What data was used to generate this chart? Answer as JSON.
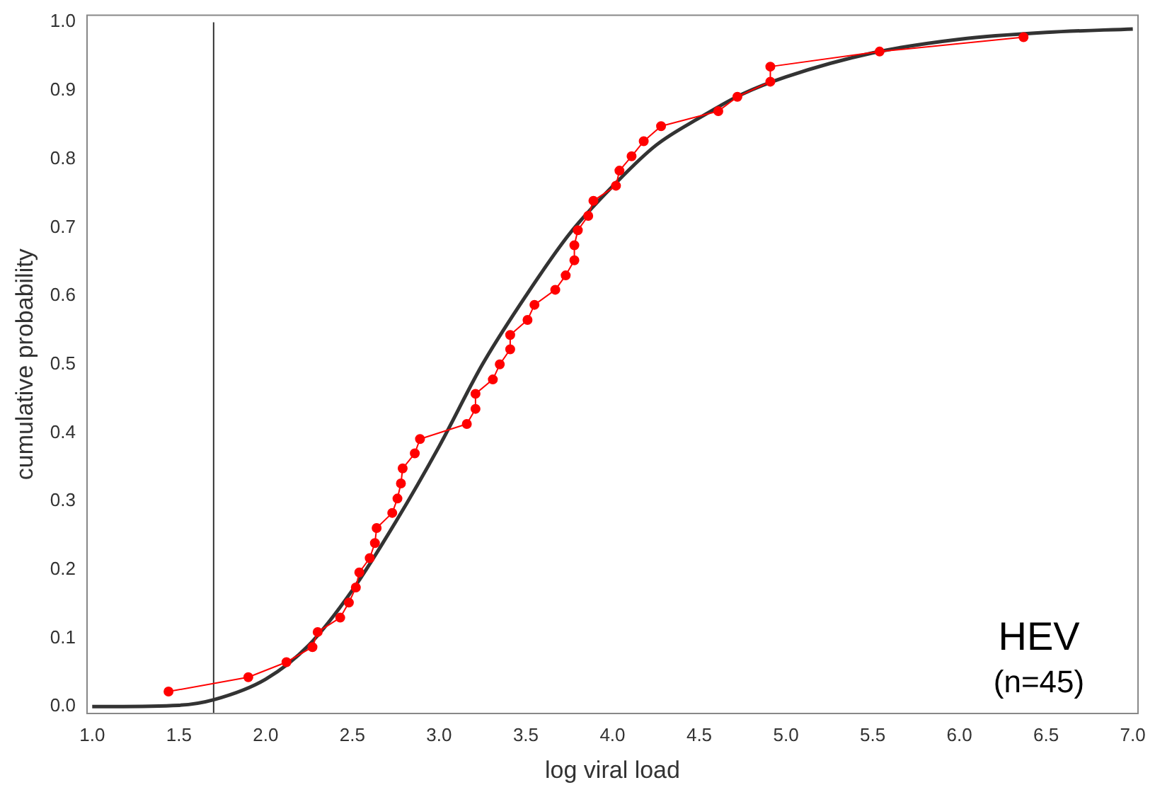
{
  "chart_data": {
    "type": "line",
    "xlabel": "log viral load",
    "ylabel": "cumulative probability",
    "xlim": [
      0.97,
      7.03
    ],
    "ylim": [
      -0.01,
      1.01
    ],
    "xticks": [
      {
        "value": 1,
        "label": "1.0"
      },
      1.5,
      {
        "value": 2,
        "label": "2.0"
      },
      2.5,
      {
        "value": 3,
        "label": "3.0"
      },
      3.5,
      {
        "value": 4,
        "label": "4.0"
      },
      4.5,
      {
        "value": 5,
        "label": "5.0"
      },
      5.5,
      {
        "value": 6,
        "label": "6.0"
      },
      6.5,
      {
        "value": 7,
        "label": "7.0"
      }
    ],
    "yticks": [
      {
        "value": 0,
        "label": "0.0"
      },
      0.1,
      0.2,
      0.3,
      0.4,
      0.5,
      0.6,
      0.7,
      0.8,
      0.9,
      {
        "value": 1,
        "label": "1.0"
      }
    ],
    "grid": false,
    "legend": false,
    "series": [
      {
        "color": "#ff0000",
        "marker": "circle",
        "x": [
          1.44,
          1.9,
          2.12,
          2.27,
          2.3,
          2.43,
          2.48,
          2.52,
          2.54,
          2.6,
          2.63,
          2.64,
          2.73,
          2.76,
          2.78,
          2.79,
          2.86,
          2.89,
          3.16,
          3.21,
          3.21,
          3.31,
          3.35,
          3.41,
          3.41,
          3.51,
          3.55,
          3.67,
          3.73,
          3.78,
          3.78,
          3.8,
          3.86,
          3.89,
          4.02,
          4.04,
          4.11,
          4.18,
          4.28,
          4.61,
          4.72,
          4.91,
          4.91,
          5.54,
          6.37
        ],
        "values": [
          0.022,
          0.043,
          0.065,
          0.087,
          0.109,
          0.13,
          0.152,
          0.174,
          0.196,
          0.217,
          0.239,
          0.261,
          0.283,
          0.304,
          0.326,
          0.348,
          0.37,
          0.391,
          0.413,
          0.435,
          0.457,
          0.478,
          0.5,
          0.522,
          0.543,
          0.565,
          0.587,
          0.609,
          0.63,
          0.652,
          0.674,
          0.696,
          0.717,
          0.739,
          0.761,
          0.783,
          0.804,
          0.826,
          0.848,
          0.87,
          0.891,
          0.913,
          0.935,
          0.957,
          0.978
        ]
      },
      {
        "color": "#333333",
        "marker": "none",
        "x": [
          1.0,
          1.5,
          1.7,
          2.0,
          2.25,
          2.5,
          2.75,
          3.0,
          3.25,
          3.5,
          3.75,
          4.0,
          4.25,
          4.5,
          4.75,
          5.0,
          5.5,
          6.0,
          6.5,
          7.0
        ],
        "values": [
          0.0,
          0.002,
          0.01,
          0.04,
          0.09,
          0.17,
          0.27,
          0.38,
          0.5,
          0.6,
          0.69,
          0.76,
          0.82,
          0.86,
          0.895,
          0.92,
          0.955,
          0.975,
          0.985,
          0.99
        ]
      }
    ],
    "ref_lines": [
      {
        "axis": "x",
        "value": 1.7,
        "color": "#333333"
      }
    ],
    "annotations": [
      "HEV",
      "(n=45)"
    ]
  }
}
